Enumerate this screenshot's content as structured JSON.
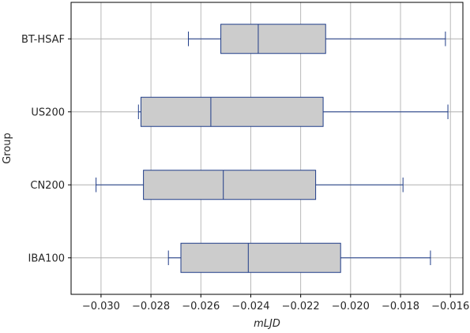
{
  "chart_data": {
    "type": "box",
    "orientation": "horizontal",
    "xlabel": "mLJD",
    "ylabel": "Group",
    "xlim": [
      -0.0312,
      -0.0155
    ],
    "xticks": [
      -0.03,
      -0.028,
      -0.026,
      -0.024,
      -0.022,
      -0.02,
      -0.018,
      -0.016
    ],
    "xtick_labels": [
      "−0.030",
      "−0.028",
      "−0.026",
      "−0.024",
      "−0.022",
      "−0.020",
      "−0.018",
      "−0.016"
    ],
    "grid": true,
    "categories": [
      "BT-HSAF",
      "US200",
      "CN200",
      "IBA100"
    ],
    "boxes": [
      {
        "label": "BT-HSAF",
        "whisker_low": -0.0265,
        "q1": -0.0252,
        "median": -0.0237,
        "q3": -0.021,
        "whisker_high": -0.0162
      },
      {
        "label": "US200",
        "whisker_low": -0.0285,
        "q1": -0.0284,
        "median": -0.0256,
        "q3": -0.0211,
        "whisker_high": -0.0161
      },
      {
        "label": "CN200",
        "whisker_low": -0.0302,
        "q1": -0.0283,
        "median": -0.0251,
        "q3": -0.0214,
        "whisker_high": -0.0179
      },
      {
        "label": "IBA100",
        "whisker_low": -0.0273,
        "q1": -0.0268,
        "median": -0.0241,
        "q3": -0.0204,
        "whisker_high": -0.0168
      }
    ],
    "colors": {
      "box_fill": "#cccccc",
      "box_edge": "#1f3c88",
      "grid": "#b0b0b0",
      "axis": "#000000"
    }
  }
}
